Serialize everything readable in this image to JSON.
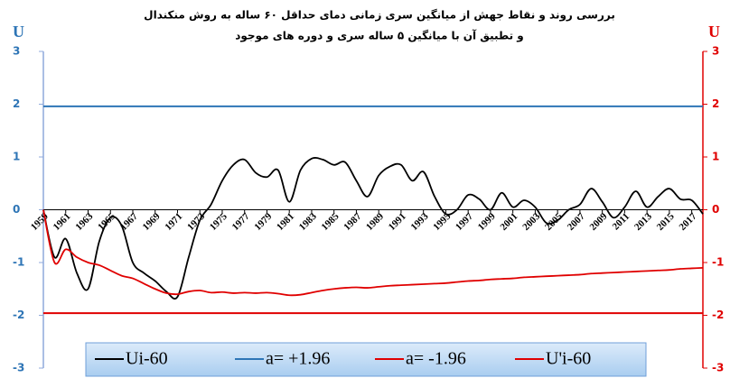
{
  "chart_data": {
    "type": "line",
    "title": [
      "بررسی روند و نقاط جهش از میانگین سری زمانی دمای حداقل ۶۰ ساله به روش منکندال",
      "و تطبیق آن با میانگین ۵ ساله سری و دوره های موجود"
    ],
    "y_label": "U",
    "y2_label": "U",
    "x": [
      1959,
      1960,
      1961,
      1962,
      1963,
      1964,
      1965,
      1966,
      1967,
      1968,
      1969,
      1970,
      1971,
      1972,
      1973,
      1974,
      1975,
      1976,
      1977,
      1978,
      1979,
      1980,
      1981,
      1982,
      1983,
      1984,
      1985,
      1986,
      1987,
      1988,
      1989,
      1990,
      1991,
      1992,
      1993,
      1994,
      1995,
      1996,
      1997,
      1998,
      1999,
      2000,
      2001,
      2002,
      2003,
      2004,
      2005,
      2006,
      2007,
      2008,
      2009,
      2010,
      2011,
      2012,
      2013,
      2014,
      2015,
      2016,
      2017,
      2018
    ],
    "xlim": [
      1959,
      2018
    ],
    "xticks": [
      1959,
      1961,
      1963,
      1965,
      1967,
      1969,
      1971,
      1973,
      1975,
      1977,
      1979,
      1981,
      1983,
      1985,
      1987,
      1989,
      1991,
      1993,
      1995,
      1997,
      1999,
      2001,
      2003,
      2005,
      2007,
      2009,
      2011,
      2013,
      2015,
      2017
    ],
    "ylim": [
      -3,
      3
    ],
    "yticks": [
      -3,
      -2,
      -1,
      0,
      1,
      2,
      3
    ],
    "y2lim": [
      -3,
      3
    ],
    "y2ticks": [
      -3,
      -2,
      -1,
      0,
      1,
      2,
      3
    ],
    "legend": "bottom",
    "series": [
      {
        "name": "Ui-60",
        "color": "#000000",
        "values": [
          0,
          -0.9,
          -0.55,
          -1.2,
          -1.5,
          -0.6,
          -0.15,
          -0.3,
          -1.0,
          -1.2,
          -1.35,
          -1.55,
          -1.65,
          -0.9,
          -0.2,
          0.1,
          0.55,
          0.85,
          0.95,
          0.7,
          0.62,
          0.75,
          0.15,
          0.75,
          0.97,
          0.95,
          0.85,
          0.9,
          0.55,
          0.25,
          0.65,
          0.82,
          0.85,
          0.55,
          0.72,
          0.25,
          -0.08,
          0,
          0.28,
          0.2,
          0,
          0.32,
          0.05,
          0.18,
          0.05,
          -0.25,
          -0.2,
          0,
          0.1,
          0.4,
          0.15,
          -0.15,
          0.05,
          0.35,
          0.05,
          0.25,
          0.4,
          0.2,
          0.18,
          -0.08
        ]
      },
      {
        "name": "a= +1.96",
        "color": "#2e75b6",
        "value": 1.96
      },
      {
        "name": "a= -1.96",
        "color": "#e00000",
        "value": -1.96
      },
      {
        "name": "U'i-60",
        "color": "#e00000",
        "values": [
          0,
          -1.0,
          -0.75,
          -0.9,
          -1.0,
          -1.05,
          -1.15,
          -1.25,
          -1.3,
          -1.4,
          -1.5,
          -1.58,
          -1.6,
          -1.55,
          -1.53,
          -1.57,
          -1.56,
          -1.58,
          -1.57,
          -1.58,
          -1.57,
          -1.59,
          -1.62,
          -1.61,
          -1.57,
          -1.53,
          -1.5,
          -1.48,
          -1.47,
          -1.48,
          -1.46,
          -1.44,
          -1.43,
          -1.42,
          -1.41,
          -1.4,
          -1.39,
          -1.37,
          -1.35,
          -1.34,
          -1.32,
          -1.31,
          -1.3,
          -1.28,
          -1.27,
          -1.26,
          -1.25,
          -1.24,
          -1.23,
          -1.21,
          -1.2,
          -1.19,
          -1.18,
          -1.17,
          -1.16,
          -1.15,
          -1.14,
          -1.12,
          -1.11,
          -1.1
        ]
      }
    ]
  }
}
